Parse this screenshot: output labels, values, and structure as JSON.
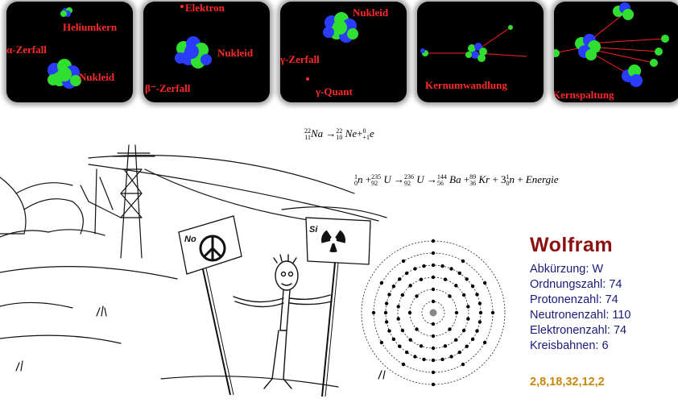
{
  "panels": [
    {
      "labels": [
        "Heliumkern",
        "α-Zerfall",
        "Nukleid"
      ]
    },
    {
      "labels": [
        "Elektron",
        "Nukleid",
        "β⁻-Zerfall"
      ]
    },
    {
      "labels": [
        "Nukleid",
        "γ-Zerfall",
        "γ-Quant"
      ]
    },
    {
      "labels": [
        "Kernumwandlung"
      ]
    },
    {
      "labels": [
        "Kernspaltung"
      ]
    }
  ],
  "formulas": {
    "beta": {
      "z1": "11",
      "a1": "22",
      "s1": "Na",
      "z2": "10",
      "a2": "22",
      "s2": "Ne",
      "z3": "+1",
      "a3": "0",
      "s3": "e"
    },
    "fission": "n + U → U → Ba + Kr + 3 n + Energie",
    "fission_parts": {
      "n_a": "1",
      "n_z": "0",
      "u_a": "235",
      "u_z": "92",
      "u2_a": "236",
      "u2_z": "92",
      "ba_a": "144",
      "ba_z": "56",
      "kr_a": "89",
      "kr_z": "36",
      "n2_a": "1",
      "n2_z": "0",
      "energy": "Energie",
      "coef": "3"
    }
  },
  "signs": {
    "left": "No",
    "right": "Si"
  },
  "element": {
    "name": "Wolfram",
    "abbreviation": "Abkürzung: W",
    "atomic_number": "Ordnungszahl: 74",
    "protons": "Protonenzahl: 74",
    "neutrons": "Neutronenzahl: 110",
    "electrons": "Elektronenzahl: 74",
    "shells_count": "Kreisbahnen: 6",
    "configuration": "2,8,18,32,12,2"
  },
  "colors": {
    "title": "#8b1010",
    "info": "#1a1a7a",
    "config": "#c8860a",
    "label": "#ff2a2a"
  }
}
